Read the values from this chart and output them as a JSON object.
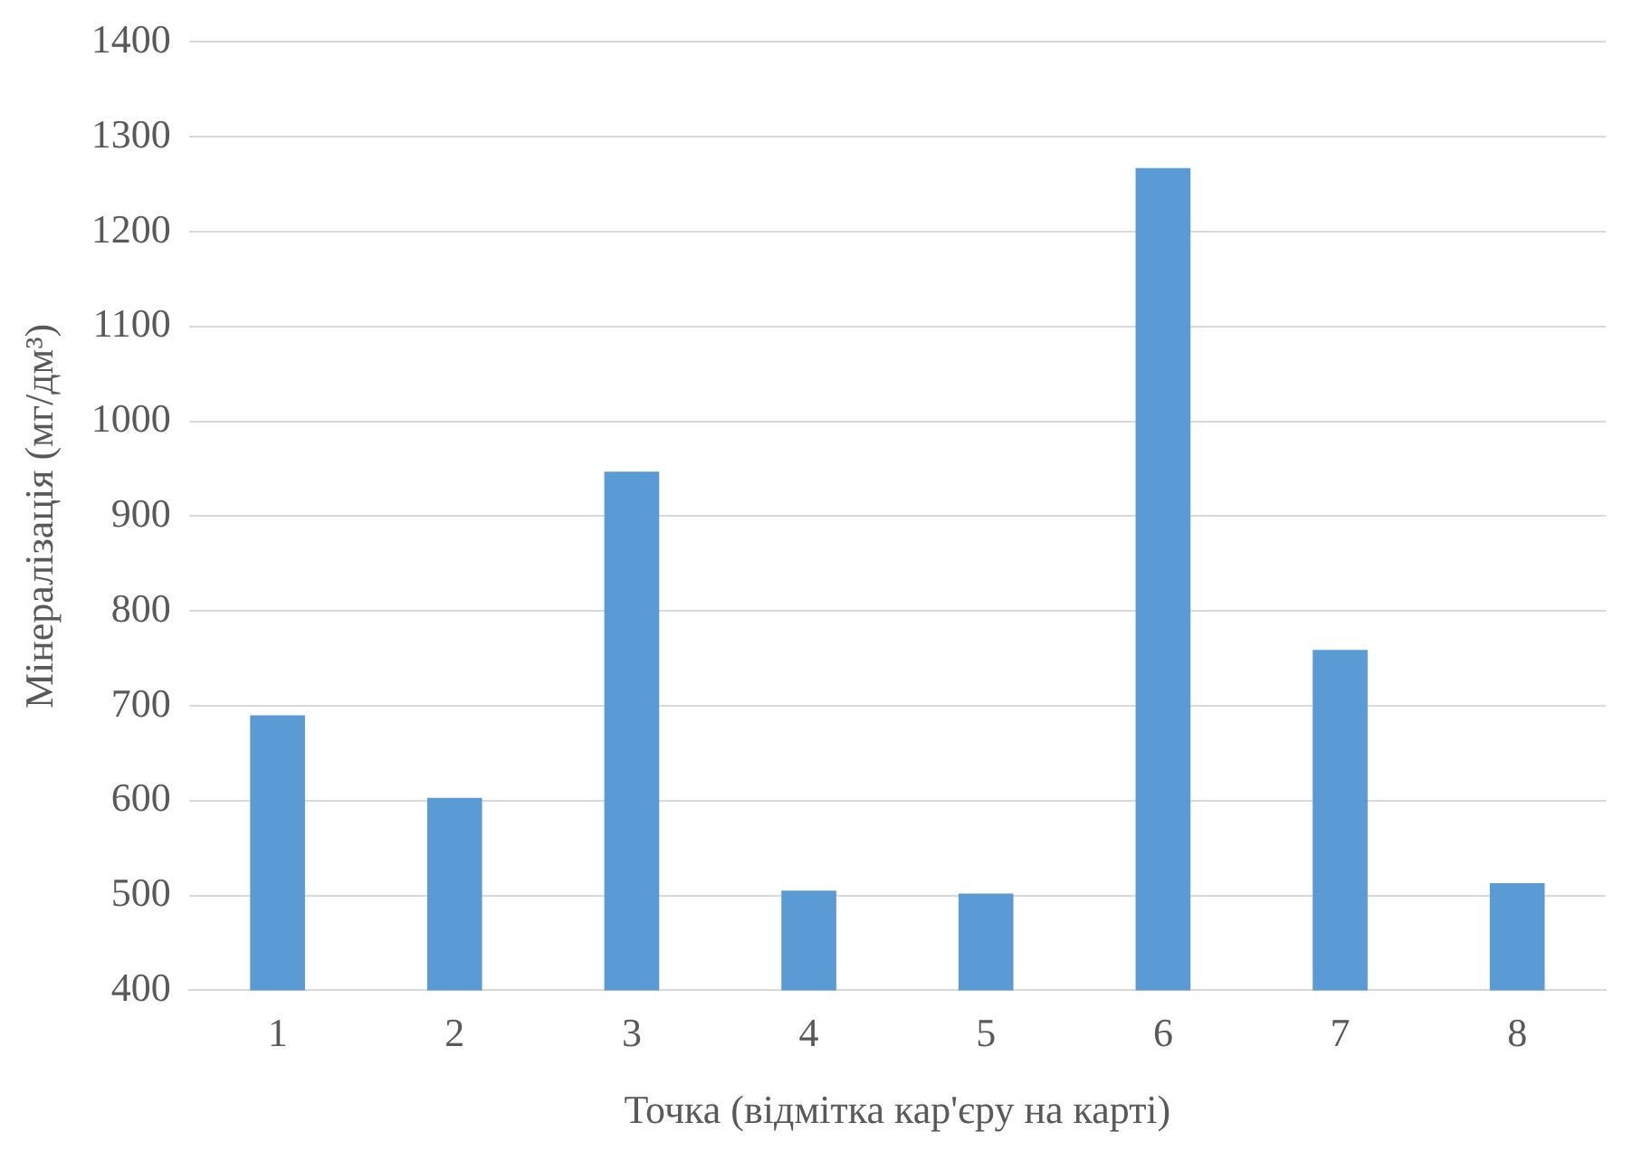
{
  "chart_data": {
    "type": "bar",
    "xlabel": "Точка (відмітка кар'єру на карті)",
    "ylabel": "Мінералізація (мг/дм³)",
    "categories": [
      "1",
      "2",
      "3",
      "4",
      "5",
      "6",
      "7",
      "8"
    ],
    "values": [
      690,
      603,
      947,
      505,
      502,
      1267,
      759,
      513
    ],
    "color": "#5b9bd5",
    "ylim": [
      400,
      1400
    ],
    "yticks": [
      400,
      500,
      600,
      700,
      800,
      900,
      1000,
      1100,
      1200,
      1300,
      1400
    ],
    "grid": "y"
  }
}
